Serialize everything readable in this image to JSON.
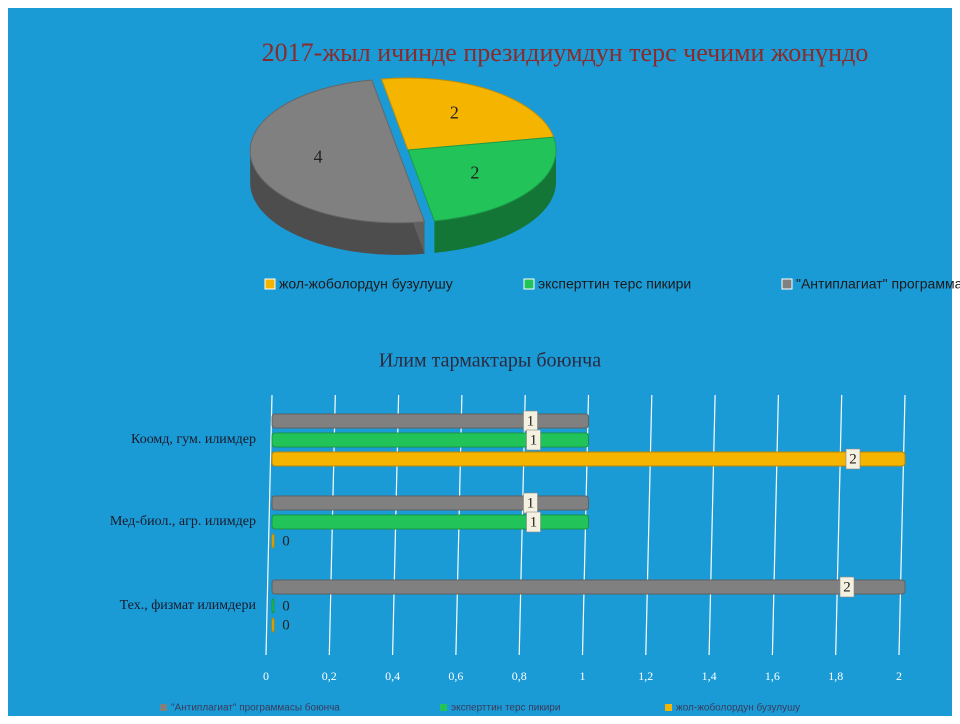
{
  "chart_data": [
    {
      "type": "pie",
      "title": "2017-жыл ичинде президиумдун терс чечими жонүндо",
      "categories": [
        "жол-жоболордун бузулушу",
        "эксперттин терс пикири",
        "\"Антиплагиат\" программасы боюнча"
      ],
      "values": [
        2,
        2,
        4
      ],
      "colors": [
        "#f5b400",
        "#22c45a",
        "#808080"
      ],
      "legend": "bottom"
    },
    {
      "type": "barh",
      "title": "Илим тармактары боюнча",
      "categories": [
        "Коомд, гум. илимдер",
        "Мед-биол., агр. илимдер",
        "Тех., физмат илимдери"
      ],
      "series": [
        {
          "name": "\"Антиплагиат\" программасы боюнча",
          "color": "#808080",
          "values": [
            1,
            1,
            2
          ]
        },
        {
          "name": "эксперттин терс пикири",
          "color": "#22c45a",
          "values": [
            1,
            1,
            0
          ]
        },
        {
          "name": "жол-жоболордун бузулушу",
          "color": "#f5b400",
          "values": [
            2,
            0,
            0
          ]
        }
      ],
      "xlim": [
        0,
        2
      ],
      "xticks": [
        0,
        {
          "value": 0.2,
          "label": "0,2"
        },
        {
          "value": 0.4,
          "label": "0,4"
        },
        {
          "value": 0.6,
          "label": "0,6"
        },
        {
          "value": 0.8,
          "label": "0,8"
        },
        1,
        {
          "value": 1.2,
          "label": "1,2"
        },
        {
          "value": 1.4,
          "label": "1,4"
        },
        {
          "value": 1.6,
          "label": "1,6"
        },
        {
          "value": 1.8,
          "label": "1,8"
        },
        2
      ],
      "grid": true,
      "legend": "bottom"
    }
  ]
}
